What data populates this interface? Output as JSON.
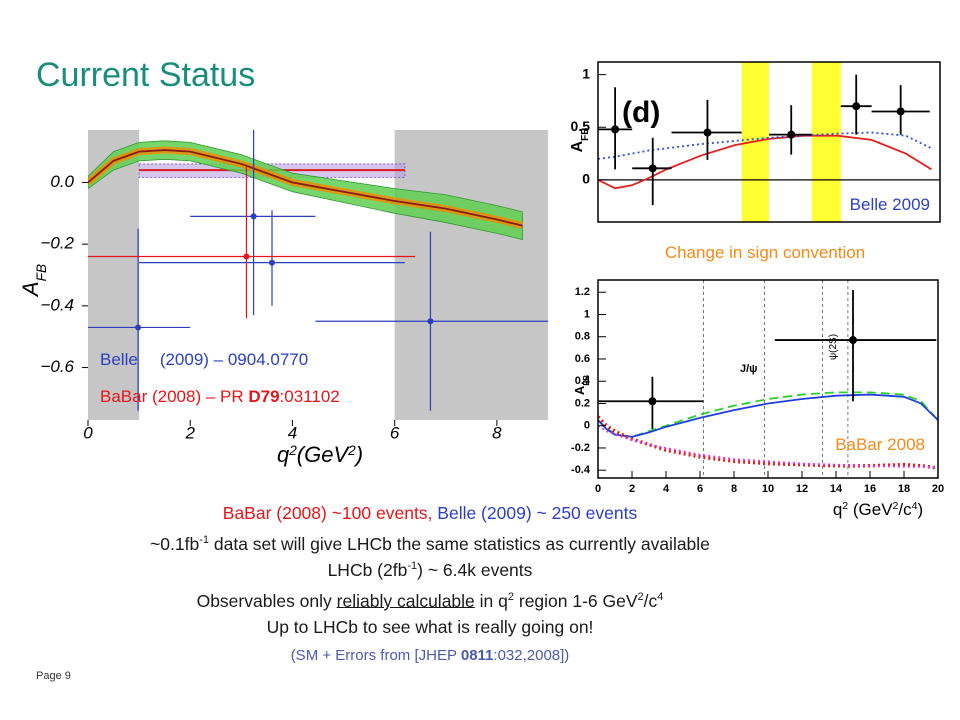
{
  "slide": {
    "title": "Current Status",
    "page": "Page 9",
    "sign_note": "Change in sign convention",
    "lines": [
      [
        {
          "text": "BaBar (2008) ~100 events,",
          "color": "#e3161b"
        },
        {
          "text": " Belle (2009) ~ 250 events",
          "color": "#2b3fbf"
        }
      ],
      [
        {
          "text": "~0.1fb"
        },
        {
          "text": "-1",
          "sup": true
        },
        {
          "text": " data set will give LHCb the same statistics as currently available"
        }
      ],
      [
        {
          "text": "LHCb (2fb"
        },
        {
          "text": "-1",
          "sup": true
        },
        {
          "text": ") ~ 6.4k events"
        }
      ],
      [
        {
          "text": "Observables only "
        },
        {
          "text": "reliably calculable",
          "underline": true
        },
        {
          "text": " in q"
        },
        {
          "text": "2",
          "sup": true
        },
        {
          "text": " region 1-6 GeV"
        },
        {
          "text": "2",
          "sup": true
        },
        {
          "text": "/c"
        },
        {
          "text": "4",
          "sup": true
        }
      ],
      [
        {
          "text": "Up to LHCb to see what is really going on!"
        }
      ],
      [
        {
          "text": "(SM + Errors from [JHEP ",
          "color": "#4a5ba8",
          "small": true
        },
        {
          "text": "0811",
          "color": "#4a5ba8",
          "bold": true,
          "small": true
        },
        {
          "text": ":032,2008])",
          "color": "#4a5ba8",
          "small": true
        }
      ]
    ]
  },
  "chart_data": [
    {
      "type": "errorbar",
      "xlim": [
        0,
        9
      ],
      "ylim": [
        -0.77,
        0.17
      ],
      "xticks": [
        0,
        2,
        4,
        6,
        8
      ],
      "yticks": [
        {
          "value": 0,
          "label": "0.0"
        },
        {
          "value": -0.2,
          "label": "−0.2"
        },
        {
          "value": -0.4,
          "label": "−0.4"
        },
        {
          "value": -0.6,
          "label": "−0.6"
        }
      ],
      "x_label": [
        {
          "text": "q"
        },
        {
          "text": "2",
          "sup": true
        },
        {
          "text": "(GeV"
        },
        {
          "text": "2",
          "sup": true
        },
        {
          "text": ")"
        }
      ],
      "y_label": [
        {
          "text": "A"
        },
        {
          "text": "FB",
          "sub": true
        }
      ],
      "shaded": [
        [
          0,
          1
        ],
        [
          6,
          9
        ]
      ],
      "shaded_color": "#c6c6c6",
      "bands": [
        {
          "x": [
            1,
            6.2
          ],
          "low": 0.016,
          "high": 0.06,
          "center": 0.04,
          "color": "#b9a0e0",
          "line_color": "#d81b1b"
        }
      ],
      "curves": [
        {
          "color": "#8b1a1a",
          "dash": "solid",
          "band_color": "#5fcf4f",
          "x": [
            0,
            0.5,
            1,
            1.5,
            2,
            3,
            4,
            5,
            6,
            7,
            8,
            8.5
          ],
          "values": [
            0.0,
            0.07,
            0.1,
            0.105,
            0.1,
            0.06,
            0.0,
            -0.03,
            -0.06,
            -0.085,
            -0.12,
            -0.14
          ],
          "band_low": [
            -0.02,
            0.04,
            0.07,
            0.075,
            0.07,
            0.03,
            -0.03,
            -0.065,
            -0.1,
            -0.13,
            -0.165,
            -0.185
          ],
          "band_high": [
            0.02,
            0.1,
            0.13,
            0.135,
            0.13,
            0.09,
            0.03,
            0.005,
            -0.02,
            -0.04,
            -0.075,
            -0.095
          ]
        }
      ],
      "series": [
        {
          "color": "#2b3fbf",
          "x": [
            0.98,
            3.24,
            3.6,
            6.7
          ],
          "values": [
            -0.47,
            -0.11,
            -0.26,
            -0.45
          ],
          "x_low": [
            0,
            2,
            1,
            4.45
          ],
          "x_high": [
            2,
            4.45,
            6.2,
            9
          ],
          "y_low": [
            -0.74,
            -0.43,
            -0.4,
            -0.74
          ],
          "y_high": [
            -0.15,
            0.17,
            -0.09,
            -0.16
          ],
          "legend": [
            {
              "text": "Belle"
            },
            {
              "text": "(2009) – 0904.0770"
            }
          ]
        },
        {
          "color": "#e3161b",
          "x": [
            3.1
          ],
          "values": [
            -0.24
          ],
          "x_low": [
            0
          ],
          "x_high": [
            6.4
          ],
          "y_low": [
            -0.44
          ],
          "y_high": [
            0.05
          ],
          "legend": [
            {
              "text": "BaBar (2008) – PR "
            },
            {
              "text": "D79",
              "bold": true
            },
            {
              "text": ":031102"
            }
          ]
        }
      ]
    },
    {
      "type": "errorbar",
      "xlim": [
        0,
        20
      ],
      "ylim": [
        -0.4,
        1.12
      ],
      "yticks": [
        0,
        0.5,
        1
      ],
      "y_label": [
        {
          "text": "A"
        },
        {
          "text": "FB",
          "sub": true
        }
      ],
      "shaded": [
        [
          8.4,
          10
        ],
        [
          12.5,
          14.2
        ]
      ],
      "shaded_color": "#ffff33",
      "zero_line": true,
      "annotations": [
        "(d)",
        "Belle 2009"
      ],
      "curves": [
        {
          "color": "#e32020",
          "dash": "solid",
          "x": [
            0,
            1,
            2,
            3,
            4,
            6,
            8,
            10,
            12,
            14,
            16,
            18,
            19.5
          ],
          "values": [
            0,
            -0.08,
            -0.05,
            0.02,
            0.1,
            0.23,
            0.33,
            0.39,
            0.42,
            0.42,
            0.38,
            0.25,
            0.1
          ]
        },
        {
          "color": "#2b4fd8",
          "dash": "dotted",
          "x": [
            0,
            1,
            2,
            3,
            4,
            6,
            8,
            10,
            12,
            14,
            16,
            18,
            19.5
          ],
          "values": [
            0.2,
            0.22,
            0.25,
            0.28,
            0.3,
            0.34,
            0.37,
            0.4,
            0.42,
            0.44,
            0.45,
            0.42,
            0.3
          ]
        }
      ],
      "series": [
        {
          "color": "#000000",
          "x": [
            1,
            3.2,
            6.4,
            11.3,
            15.1,
            17.7
          ],
          "values": [
            0.48,
            0.11,
            0.45,
            0.43,
            0.7,
            0.65
          ],
          "x_low": [
            0,
            2,
            4.3,
            10,
            14.2,
            16
          ],
          "x_high": [
            2,
            4.3,
            8.4,
            12.5,
            16,
            19.4
          ],
          "y_low": [
            0.1,
            -0.24,
            0.19,
            0.24,
            0.43,
            0.43
          ],
          "y_high": [
            0.88,
            0.4,
            0.76,
            0.71,
            1.0,
            0.9
          ]
        }
      ]
    },
    {
      "type": "errorbar",
      "xlim": [
        0,
        20
      ],
      "ylim": [
        -0.47,
        1.31
      ],
      "xticks": [
        0,
        2,
        4,
        6,
        8,
        10,
        12,
        14,
        16,
        18,
        20
      ],
      "yticks": [
        1.2,
        1,
        0.8,
        0.6,
        0.4,
        0.2,
        0,
        -0.2,
        -0.4
      ],
      "x_label": [
        {
          "text": "q"
        },
        {
          "text": "2",
          "sup": true
        },
        {
          "text": " (GeV"
        },
        {
          "text": "2",
          "sup": true
        },
        {
          "text": "/c"
        },
        {
          "text": "4",
          "sup": true
        },
        {
          "text": ")"
        }
      ],
      "y_label": [
        {
          "text": "A"
        },
        {
          "text": "FB",
          "sub": true
        }
      ],
      "vlines": [
        6.2,
        9.8,
        13.2,
        14.7
      ],
      "annotations": [
        "J/ψ",
        "ψ(2S)",
        "BaBar 2008"
      ],
      "curves": [
        {
          "color": "#2bd02b",
          "dash": "dashed",
          "x": [
            0,
            0.5,
            1,
            2,
            3,
            4,
            6,
            8,
            10,
            12,
            14,
            16,
            18,
            19,
            20
          ],
          "values": [
            0.05,
            -0.02,
            -0.08,
            -0.1,
            -0.05,
            0.0,
            0.1,
            0.18,
            0.24,
            0.28,
            0.3,
            0.3,
            0.28,
            0.22,
            0.05
          ]
        },
        {
          "color": "#1f3fe0",
          "dash": "solid",
          "x": [
            0,
            0.5,
            1,
            2,
            3,
            4,
            6,
            8,
            10,
            12,
            14,
            16,
            18,
            19,
            20
          ],
          "values": [
            0.05,
            -0.03,
            -0.08,
            -0.1,
            -0.06,
            -0.01,
            0.07,
            0.14,
            0.2,
            0.24,
            0.27,
            0.28,
            0.26,
            0.2,
            0.05
          ]
        },
        {
          "color": "#e01e1e",
          "dash": "dotted",
          "x": [
            0,
            0.5,
            1,
            2,
            3,
            4,
            6,
            8,
            10,
            12,
            14,
            16,
            18,
            19,
            20
          ],
          "values": [
            0.08,
            0.0,
            -0.05,
            -0.12,
            -0.17,
            -0.22,
            -0.28,
            -0.32,
            -0.34,
            -0.35,
            -0.36,
            -0.36,
            -0.35,
            -0.36,
            -0.38
          ]
        },
        {
          "color": "#e040e0",
          "dash": "dotted",
          "x": [
            0,
            0.5,
            1,
            2,
            3,
            4,
            6,
            8,
            10,
            12,
            14,
            16,
            18,
            19,
            20
          ],
          "values": [
            0.0,
            -0.05,
            -0.08,
            -0.13,
            -0.17,
            -0.2,
            -0.26,
            -0.3,
            -0.32,
            -0.34,
            -0.35,
            -0.36,
            -0.37,
            -0.37,
            -0.37
          ]
        }
      ],
      "series": [
        {
          "color": "#000000",
          "x": [
            3.2,
            15
          ],
          "values": [
            0.22,
            0.77
          ],
          "x_low": [
            0,
            10.4
          ],
          "x_high": [
            6.2,
            19.9
          ],
          "y_low": [
            -0.03,
            0.22
          ],
          "y_high": [
            0.44,
            1.22
          ]
        }
      ]
    }
  ]
}
